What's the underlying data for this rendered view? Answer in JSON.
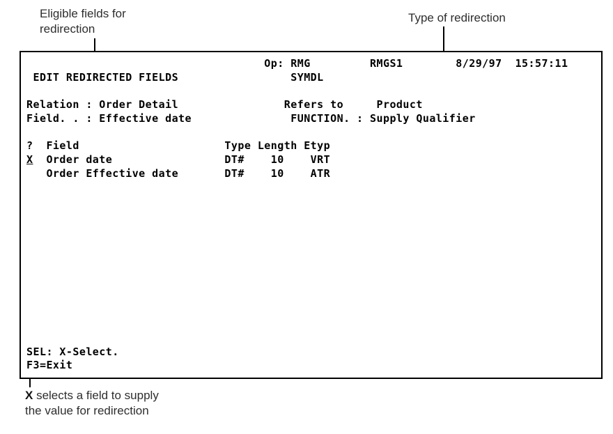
{
  "colors": {
    "ink": "#000000",
    "paper": "#ffffff"
  },
  "callouts": {
    "eligible_fields": {
      "line1": "Eligible fields for",
      "line2": "redirection"
    },
    "redirection_type": {
      "text": "Type of redirection"
    },
    "x_select": {
      "bold_x": "X",
      "line1_rest": " selects a field to supply",
      "line2": "the value for redirection"
    }
  },
  "terminal": {
    "lines_above_selection": [
      "                                    Op: RMG         RMGS1        8/29/97  15:57:11",
      " EDIT REDIRECTED FIELDS                 SYMDL",
      "",
      "Relation : Order Detail                Refers to     Product",
      "Field. . : Effective date               FUNCTION. : Supply Qualifier",
      "",
      "?  Field                      Type Length Etyp"
    ],
    "selection_mark": "X",
    "selected_line_rest": "  Order date                 DT#    10    VRT",
    "lines_below_selection": [
      "   Order Effective date       DT#    10    ATR",
      "",
      "",
      "",
      "",
      "",
      "",
      "",
      "",
      "",
      "",
      "",
      "",
      "SEL: X-Select.",
      "F3=Exit"
    ],
    "summary": {
      "title": "EDIT REDIRECTED FIELDS",
      "operator": "RMG",
      "screen_id": "RMGS1",
      "subtitle": "SYMDL",
      "datetime": "8/29/97 15:57:11",
      "relation_label": "Relation :",
      "relation": "Order Detail",
      "field_label": "Field. . :",
      "field": "Effective date",
      "refers_to_label": "Refers to",
      "refers_to": "Product",
      "function_label": "FUNCTION. :",
      "function": "Supply Qualifier",
      "table_headers": [
        "?",
        "Field",
        "Type",
        "Length",
        "Etyp"
      ],
      "table_rows": [
        {
          "select": "X",
          "field": "Order date",
          "type": "DT#",
          "length": "10",
          "etyp": "VRT"
        },
        {
          "select": "",
          "field": "Order Effective date",
          "type": "DT#",
          "length": "10",
          "etyp": "ATR"
        }
      ],
      "sel_prompt": "SEL: X-Select.",
      "exit_prompt": "F3=Exit"
    }
  }
}
